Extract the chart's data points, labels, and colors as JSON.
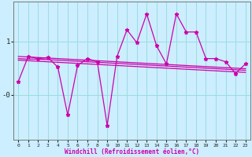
{
  "background_color": "#cceeff",
  "grid_color": "#99dddd",
  "line_color": "#cc00aa",
  "x": [
    0,
    1,
    2,
    3,
    4,
    5,
    6,
    7,
    8,
    9,
    10,
    11,
    12,
    13,
    14,
    15,
    16,
    17,
    18,
    19,
    20,
    21,
    22,
    23
  ],
  "y_main": [
    0.25,
    0.72,
    0.68,
    0.7,
    0.52,
    -0.38,
    0.55,
    0.68,
    0.62,
    -0.58,
    0.72,
    1.22,
    0.98,
    1.52,
    0.92,
    0.58,
    1.52,
    1.18,
    1.18,
    0.68,
    0.68,
    0.62,
    0.4,
    0.58
  ],
  "y_trend1": [
    0.72,
    0.71,
    0.7,
    0.69,
    0.68,
    0.67,
    0.66,
    0.65,
    0.64,
    0.63,
    0.62,
    0.61,
    0.6,
    0.59,
    0.58,
    0.57,
    0.56,
    0.55,
    0.54,
    0.53,
    0.52,
    0.51,
    0.5,
    0.49
  ],
  "y_trend2": [
    0.68,
    0.67,
    0.67,
    0.66,
    0.65,
    0.64,
    0.63,
    0.62,
    0.61,
    0.6,
    0.59,
    0.58,
    0.57,
    0.56,
    0.55,
    0.54,
    0.53,
    0.52,
    0.51,
    0.5,
    0.49,
    0.48,
    0.47,
    0.46
  ],
  "y_trend3": [
    0.65,
    0.64,
    0.63,
    0.62,
    0.61,
    0.6,
    0.59,
    0.58,
    0.57,
    0.56,
    0.55,
    0.54,
    0.53,
    0.52,
    0.51,
    0.5,
    0.49,
    0.48,
    0.47,
    0.46,
    0.45,
    0.44,
    0.43,
    0.42
  ],
  "xlabel": "Windchill (Refroidissement éolien,°C)",
  "ylim": [
    -0.85,
    1.75
  ],
  "ytick_vals": [
    0.0,
    1.0
  ],
  "ytick_labels": [
    "-0",
    "1"
  ],
  "xticks": [
    0,
    1,
    2,
    3,
    4,
    5,
    6,
    7,
    8,
    9,
    10,
    11,
    12,
    13,
    14,
    15,
    16,
    17,
    18,
    19,
    20,
    21,
    22,
    23
  ],
  "figsize": [
    3.2,
    2.0
  ],
  "dpi": 100
}
